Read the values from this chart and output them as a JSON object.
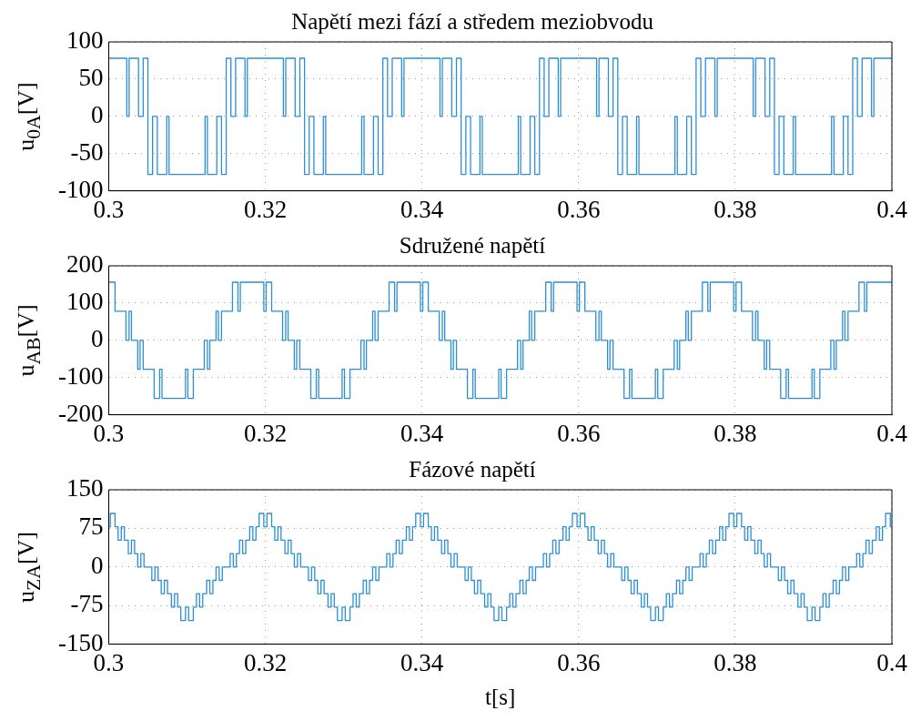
{
  "chart_data": [
    {
      "type": "step",
      "title": "Napětí mezi fází a středem meziobvodu",
      "ylabel": "u$_{0A}$[V]",
      "grid": true,
      "xlim": [
        0.3,
        0.4
      ],
      "xticks": [
        0.3,
        0.32,
        0.34,
        0.36,
        0.38,
        0.4
      ],
      "ylim": [
        -100,
        100
      ],
      "yticks": [
        -100,
        -50,
        0,
        50,
        100
      ],
      "series": [
        {
          "color": "#2a8fd8",
          "x": [
            0.3,
            0.3023,
            0.3026,
            0.3038,
            0.3044,
            0.305,
            0.3056,
            0.3062,
            0.3074,
            0.3077,
            0.3123,
            0.3126,
            0.3138,
            0.3144,
            0.315,
            0.3156,
            0.3162,
            0.3174,
            0.3177,
            0.3223,
            0.3226,
            0.3238,
            0.3244,
            0.325,
            0.3256,
            0.3262,
            0.3274,
            0.3277,
            0.3323,
            0.3326,
            0.3338,
            0.3344,
            0.335,
            0.3356,
            0.3362,
            0.3374,
            0.3377,
            0.3423,
            0.3426,
            0.3438,
            0.3444,
            0.345,
            0.3456,
            0.3462,
            0.3474,
            0.3477,
            0.3523,
            0.3526,
            0.3538,
            0.3544,
            0.355,
            0.3556,
            0.3562,
            0.3574,
            0.3577,
            0.3623,
            0.3626,
            0.3638,
            0.3644,
            0.365,
            0.3656,
            0.3662,
            0.3674,
            0.3677,
            0.3723,
            0.3726,
            0.3738,
            0.3744,
            0.375,
            0.3756,
            0.3762,
            0.3774,
            0.3777,
            0.3823,
            0.3826,
            0.3838,
            0.3844,
            0.385,
            0.3856,
            0.3862,
            0.3874,
            0.3877,
            0.3923,
            0.3926,
            0.3938,
            0.3944,
            0.395,
            0.3956,
            0.3962,
            0.3974,
            0.3977,
            0.4
          ],
          "values": [
            78,
            0,
            78,
            0,
            78,
            -78,
            0,
            -78,
            0,
            -78,
            0,
            -78,
            0,
            -78,
            78,
            0,
            78,
            0,
            78,
            0,
            78,
            0,
            78,
            -78,
            0,
            -78,
            0,
            -78,
            0,
            -78,
            0,
            -78,
            78,
            0,
            78,
            0,
            78,
            0,
            78,
            0,
            78,
            -78,
            0,
            -78,
            0,
            -78,
            0,
            -78,
            0,
            -78,
            78,
            0,
            78,
            0,
            78,
            0,
            78,
            0,
            78,
            -78,
            0,
            -78,
            0,
            -78,
            0,
            -78,
            0,
            -78,
            78,
            0,
            78,
            0,
            78,
            0,
            78,
            0,
            78,
            -78,
            0,
            -78,
            0,
            -78,
            0,
            -78,
            0,
            -78,
            78,
            0,
            78,
            0,
            78,
            78
          ]
        }
      ]
    },
    {
      "type": "step",
      "title": "Sdružené napětí",
      "ylabel": "u$_{AB}$[V]",
      "grid": true,
      "xlim": [
        0.3,
        0.4
      ],
      "xticks": [
        0.3,
        0.32,
        0.34,
        0.36,
        0.38,
        0.4
      ],
      "ylim": [
        -200,
        200
      ],
      "yticks": [
        -200,
        -100,
        0,
        100,
        200
      ],
      "series": [
        {
          "color": "#2a8fd8",
          "x": [
            0.3,
            0.3008,
            0.3022,
            0.3026,
            0.3029,
            0.3033,
            0.3037,
            0.304,
            0.3044,
            0.3058,
            0.3065,
            0.3068,
            0.3098,
            0.3101,
            0.3108,
            0.3122,
            0.3126,
            0.3129,
            0.3133,
            0.3137,
            0.314,
            0.3144,
            0.3158,
            0.3165,
            0.3168,
            0.3198,
            0.3201,
            0.3208,
            0.3222,
            0.3226,
            0.3229,
            0.3233,
            0.3237,
            0.324,
            0.3244,
            0.3258,
            0.3265,
            0.3268,
            0.3298,
            0.3301,
            0.3308,
            0.3322,
            0.3326,
            0.3329,
            0.3333,
            0.3337,
            0.334,
            0.3344,
            0.3358,
            0.3365,
            0.3368,
            0.3398,
            0.3401,
            0.3408,
            0.3422,
            0.3426,
            0.3429,
            0.3433,
            0.3437,
            0.344,
            0.3444,
            0.3458,
            0.3465,
            0.3468,
            0.3498,
            0.3501,
            0.3508,
            0.3522,
            0.3526,
            0.3529,
            0.3533,
            0.3537,
            0.354,
            0.3544,
            0.3558,
            0.3565,
            0.3568,
            0.3598,
            0.3601,
            0.3608,
            0.3622,
            0.3626,
            0.3629,
            0.3633,
            0.3637,
            0.364,
            0.3644,
            0.3658,
            0.3665,
            0.3668,
            0.3698,
            0.3701,
            0.3708,
            0.3722,
            0.3726,
            0.3729,
            0.3733,
            0.3737,
            0.374,
            0.3744,
            0.3758,
            0.3765,
            0.3768,
            0.3798,
            0.3801,
            0.3808,
            0.3822,
            0.3826,
            0.3829,
            0.3833,
            0.3837,
            0.384,
            0.3844,
            0.3858,
            0.3865,
            0.3868,
            0.3898,
            0.3901,
            0.3908,
            0.3922,
            0.3926,
            0.3929,
            0.3933,
            0.3937,
            0.394,
            0.3944,
            0.3958,
            0.3965,
            0.3968,
            0.4
          ],
          "values": [
            156,
            78,
            0,
            78,
            0,
            0,
            -78,
            0,
            -78,
            -156,
            -78,
            -156,
            -78,
            -156,
            -78,
            0,
            -78,
            0,
            0,
            78,
            0,
            78,
            156,
            78,
            156,
            78,
            156,
            78,
            0,
            78,
            0,
            0,
            -78,
            0,
            -78,
            -156,
            -78,
            -156,
            -78,
            -156,
            -78,
            0,
            -78,
            0,
            0,
            78,
            0,
            78,
            156,
            78,
            156,
            78,
            156,
            78,
            0,
            78,
            0,
            0,
            -78,
            0,
            -78,
            -156,
            -78,
            -156,
            -78,
            -156,
            -78,
            0,
            -78,
            0,
            0,
            78,
            0,
            78,
            156,
            78,
            156,
            78,
            156,
            78,
            0,
            78,
            0,
            0,
            -78,
            0,
            -78,
            -156,
            -78,
            -156,
            -78,
            -156,
            -78,
            0,
            -78,
            0,
            0,
            78,
            0,
            78,
            156,
            78,
            156,
            78,
            156,
            78,
            0,
            78,
            0,
            0,
            -78,
            0,
            -78,
            -156,
            -78,
            -156,
            -78,
            -156,
            -78,
            0,
            -78,
            0,
            0,
            78,
            0,
            78,
            156,
            78,
            156,
            156
          ]
        }
      ]
    },
    {
      "type": "step",
      "title": "Fázové napětí",
      "xlabel": "t[s]",
      "ylabel": "u$_{ZA}$[V]",
      "grid": true,
      "xlim": [
        0.3,
        0.4
      ],
      "xticks": [
        0.3,
        0.32,
        0.34,
        0.36,
        0.38,
        0.4
      ],
      "ylim": [
        -150,
        150
      ],
      "yticks": [
        -150,
        -75,
        0,
        75,
        150
      ],
      "series": [
        {
          "color": "#2a8fd8",
          "x": [
            0.3,
            0.3002,
            0.3008,
            0.3012,
            0.3016,
            0.302,
            0.3025,
            0.3029,
            0.3033,
            0.3037,
            0.3041,
            0.3045,
            0.305,
            0.3055,
            0.3059,
            0.3063,
            0.3067,
            0.3071,
            0.3075,
            0.308,
            0.3084,
            0.3088,
            0.3092,
            0.3098,
            0.3102,
            0.3108,
            0.3112,
            0.3116,
            0.312,
            0.3125,
            0.3129,
            0.3133,
            0.3137,
            0.3141,
            0.3145,
            0.315,
            0.3155,
            0.3159,
            0.3163,
            0.3167,
            0.3171,
            0.3175,
            0.318,
            0.3184,
            0.3188,
            0.3192,
            0.3198,
            0.3202,
            0.3208,
            0.3212,
            0.3216,
            0.322,
            0.3225,
            0.3229,
            0.3233,
            0.3237,
            0.3241,
            0.3245,
            0.325,
            0.3255,
            0.3259,
            0.3263,
            0.3267,
            0.3271,
            0.3275,
            0.328,
            0.3284,
            0.3288,
            0.3292,
            0.3298,
            0.3302,
            0.3308,
            0.3312,
            0.3316,
            0.332,
            0.3325,
            0.3329,
            0.3333,
            0.3337,
            0.3341,
            0.3345,
            0.335,
            0.3355,
            0.3359,
            0.3363,
            0.3367,
            0.3371,
            0.3375,
            0.338,
            0.3384,
            0.3388,
            0.3392,
            0.3398,
            0.3402,
            0.3408,
            0.3412,
            0.3416,
            0.342,
            0.3425,
            0.3429,
            0.3433,
            0.3437,
            0.3441,
            0.3445,
            0.345,
            0.3455,
            0.3459,
            0.3463,
            0.3467,
            0.3471,
            0.3475,
            0.348,
            0.3484,
            0.3488,
            0.3492,
            0.3498,
            0.3502,
            0.3508,
            0.3512,
            0.3516,
            0.352,
            0.3525,
            0.3529,
            0.3533,
            0.3537,
            0.3541,
            0.3545,
            0.355,
            0.3555,
            0.3559,
            0.3563,
            0.3567,
            0.3571,
            0.3575,
            0.358,
            0.3584,
            0.3588,
            0.3592,
            0.3598,
            0.3602,
            0.3608,
            0.3612,
            0.3616,
            0.362,
            0.3625,
            0.3629,
            0.3633,
            0.3637,
            0.3641,
            0.3645,
            0.365,
            0.3655,
            0.3659,
            0.3663,
            0.3667,
            0.3671,
            0.3675,
            0.368,
            0.3684,
            0.3688,
            0.3692,
            0.3698,
            0.3702,
            0.3708,
            0.3712,
            0.3716,
            0.372,
            0.3725,
            0.3729,
            0.3733,
            0.3737,
            0.3741,
            0.3745,
            0.375,
            0.3755,
            0.3759,
            0.3763,
            0.3767,
            0.3771,
            0.3775,
            0.378,
            0.3784,
            0.3788,
            0.3792,
            0.3798,
            0.3802,
            0.3808,
            0.3812,
            0.3816,
            0.382,
            0.3825,
            0.3829,
            0.3833,
            0.3837,
            0.3841,
            0.3845,
            0.385,
            0.3855,
            0.3859,
            0.3863,
            0.3867,
            0.3871,
            0.3875,
            0.388,
            0.3884,
            0.3888,
            0.3892,
            0.3898,
            0.3902,
            0.3908,
            0.3912,
            0.3916,
            0.392,
            0.3925,
            0.3929,
            0.3933,
            0.3937,
            0.3941,
            0.3945,
            0.395,
            0.3955,
            0.3959,
            0.3963,
            0.3967,
            0.3971,
            0.3975,
            0.398,
            0.3984,
            0.3988,
            0.3992,
            0.3998,
            0.4
          ],
          "values": [
            78,
            104,
            78,
            52,
            78,
            52,
            26,
            52,
            26,
            0,
            26,
            0,
            0,
            -26,
            0,
            -26,
            -52,
            -26,
            -52,
            -78,
            -52,
            -78,
            -104,
            -78,
            -104,
            -78,
            -52,
            -78,
            -52,
            -26,
            -52,
            -26,
            0,
            -26,
            0,
            0,
            26,
            0,
            26,
            52,
            26,
            52,
            78,
            52,
            78,
            104,
            78,
            104,
            78,
            52,
            78,
            52,
            26,
            52,
            26,
            0,
            26,
            0,
            0,
            -26,
            0,
            -26,
            -52,
            -26,
            -52,
            -78,
            -52,
            -78,
            -104,
            -78,
            -104,
            -78,
            -52,
            -78,
            -52,
            -26,
            -52,
            -26,
            0,
            -26,
            0,
            0,
            26,
            0,
            26,
            52,
            26,
            52,
            78,
            52,
            78,
            104,
            78,
            104,
            78,
            52,
            78,
            52,
            26,
            52,
            26,
            0,
            26,
            0,
            0,
            -26,
            0,
            -26,
            -52,
            -26,
            -52,
            -78,
            -52,
            -78,
            -104,
            -78,
            -104,
            -78,
            -52,
            -78,
            -52,
            -26,
            -52,
            -26,
            0,
            -26,
            0,
            0,
            26,
            0,
            26,
            52,
            26,
            52,
            78,
            52,
            78,
            104,
            78,
            104,
            78,
            52,
            78,
            52,
            26,
            52,
            26,
            0,
            26,
            0,
            0,
            -26,
            0,
            -26,
            -52,
            -26,
            -52,
            -78,
            -52,
            -78,
            -104,
            -78,
            -104,
            -78,
            -52,
            -78,
            -52,
            -26,
            -52,
            -26,
            0,
            -26,
            0,
            0,
            26,
            0,
            26,
            52,
            26,
            52,
            78,
            52,
            78,
            104,
            78,
            104,
            78,
            52,
            78,
            52,
            26,
            52,
            26,
            0,
            26,
            0,
            0,
            -26,
            0,
            -26,
            -52,
            -26,
            -52,
            -78,
            -52,
            -78,
            -104,
            -78,
            -104,
            -78,
            -52,
            -78,
            -52,
            -26,
            -52,
            -26,
            0,
            -26,
            0,
            0,
            26,
            0,
            26,
            52,
            26,
            52,
            78,
            52,
            78,
            104,
            78,
            78
          ]
        }
      ]
    }
  ]
}
